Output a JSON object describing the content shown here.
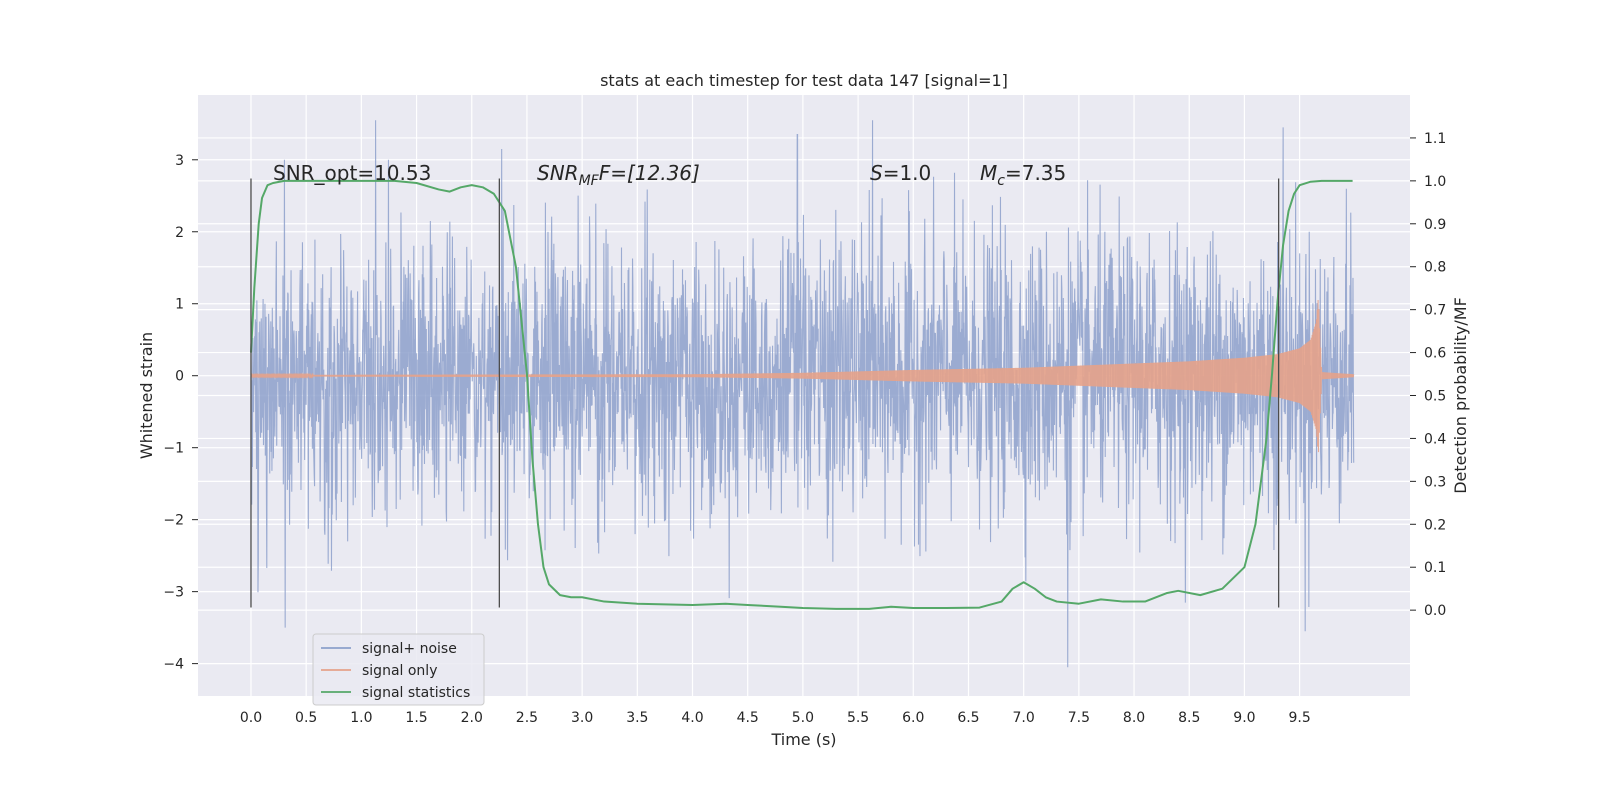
{
  "chart_data": {
    "type": "line",
    "title": "stats at each timestep for test data 147 [signal=1]",
    "xlabel": "Time (s)",
    "ylabel": "Whitened strain",
    "ylabel_right": "Detection probability/MF",
    "xlim": [
      -0.48,
      10.5
    ],
    "ylim": [
      -4.45,
      3.9
    ],
    "ylim_right": [
      -0.2,
      1.2
    ],
    "x_ticks": [
      "0.0",
      "0.5",
      "1.0",
      "1.5",
      "2.0",
      "2.5",
      "3.0",
      "3.5",
      "4.0",
      "4.5",
      "5.0",
      "5.5",
      "6.0",
      "6.5",
      "7.0",
      "7.5",
      "8.0",
      "8.5",
      "9.0",
      "9.5"
    ],
    "y_ticks": [
      "3",
      "2",
      "1",
      "0",
      "−1",
      "−2",
      "−3",
      "−4"
    ],
    "y_right_ticks": [
      "0.0",
      "0.1",
      "0.2",
      "0.3",
      "0.4",
      "0.5",
      "0.6",
      "0.7",
      "0.8",
      "0.9",
      "1.0",
      "1.1"
    ],
    "grid": true,
    "legend_placement": "lower-left",
    "annotations": {
      "snr_opt": "SNR_opt=10.53",
      "snr_mf_prefix": "SNR",
      "snr_mf_sub": "MF",
      "snr_mf_suffix": "F=[12.36]",
      "s_var": "S",
      "s_value": "=1.0",
      "mc_var": "M",
      "mc_sub": "c",
      "mc_value": "=7.35"
    },
    "series": [
      {
        "name": "signal+ noise",
        "color": "#8da0cb",
        "x_range": [
          0.0,
          9.99
        ],
        "approx_range": [
          -4.1,
          3.55
        ],
        "notable_peaks": [
          [
            1.13,
            3.55
          ],
          [
            2.27,
            3.15
          ],
          [
            4.95,
            3.35
          ],
          [
            5.63,
            3.55
          ],
          [
            9.35,
            3.45
          ],
          [
            0.31,
            -3.5
          ],
          [
            7.4,
            -4.05
          ],
          [
            9.55,
            -3.55
          ]
        ]
      },
      {
        "name": "signal only",
        "color": "#e5a28a",
        "envelope": {
          "t": [
            0.0,
            4.0,
            5.0,
            6.0,
            7.0,
            8.0,
            8.5,
            9.0,
            9.3,
            9.5,
            9.6,
            9.65,
            9.67,
            9.7,
            9.99
          ],
          "amplitude": [
            0.01,
            0.02,
            0.04,
            0.08,
            0.11,
            0.17,
            0.2,
            0.25,
            0.3,
            0.38,
            0.5,
            0.75,
            1.1,
            0.05,
            0.02
          ]
        }
      },
      {
        "name": "signal statistics",
        "color": "#55a868",
        "x": [
          0.0,
          0.03,
          0.07,
          0.1,
          0.15,
          0.2,
          0.3,
          0.5,
          0.8,
          1.0,
          1.3,
          1.5,
          1.7,
          1.8,
          1.9,
          2.0,
          2.1,
          2.2,
          2.3,
          2.4,
          2.5,
          2.55,
          2.6,
          2.65,
          2.7,
          2.8,
          2.9,
          3.0,
          3.2,
          3.5,
          3.8,
          4.0,
          4.3,
          4.5,
          4.8,
          5.0,
          5.3,
          5.6,
          5.8,
          6.0,
          6.3,
          6.6,
          6.8,
          6.9,
          7.0,
          7.1,
          7.2,
          7.3,
          7.5,
          7.7,
          7.9,
          8.1,
          8.3,
          8.4,
          8.6,
          8.8,
          9.0,
          9.1,
          9.2,
          9.25,
          9.3,
          9.35,
          9.4,
          9.45,
          9.5,
          9.6,
          9.7,
          9.8,
          9.9,
          9.98
        ],
        "y": [
          0.6,
          0.75,
          0.9,
          0.96,
          0.99,
          0.995,
          1.0,
          1.0,
          1.0,
          1.0,
          1.0,
          0.995,
          0.98,
          0.975,
          0.985,
          0.99,
          0.985,
          0.97,
          0.93,
          0.8,
          0.55,
          0.35,
          0.2,
          0.1,
          0.06,
          0.035,
          0.03,
          0.03,
          0.02,
          0.015,
          0.013,
          0.012,
          0.015,
          0.012,
          0.008,
          0.005,
          0.003,
          0.003,
          0.008,
          0.005,
          0.005,
          0.006,
          0.02,
          0.05,
          0.065,
          0.05,
          0.03,
          0.02,
          0.015,
          0.025,
          0.02,
          0.02,
          0.04,
          0.045,
          0.035,
          0.05,
          0.1,
          0.2,
          0.4,
          0.55,
          0.72,
          0.85,
          0.93,
          0.97,
          0.99,
          0.998,
          1.0,
          1.0,
          1.0,
          1.0
        ]
      }
    ],
    "vertical_markers": [
      {
        "x": 0.0,
        "y_range": [
          -3.22,
          2.74
        ]
      },
      {
        "x": 2.25,
        "y_range": [
          -3.22,
          2.74
        ]
      },
      {
        "x": 9.31,
        "y_range": [
          -3.22,
          2.74
        ]
      }
    ]
  }
}
